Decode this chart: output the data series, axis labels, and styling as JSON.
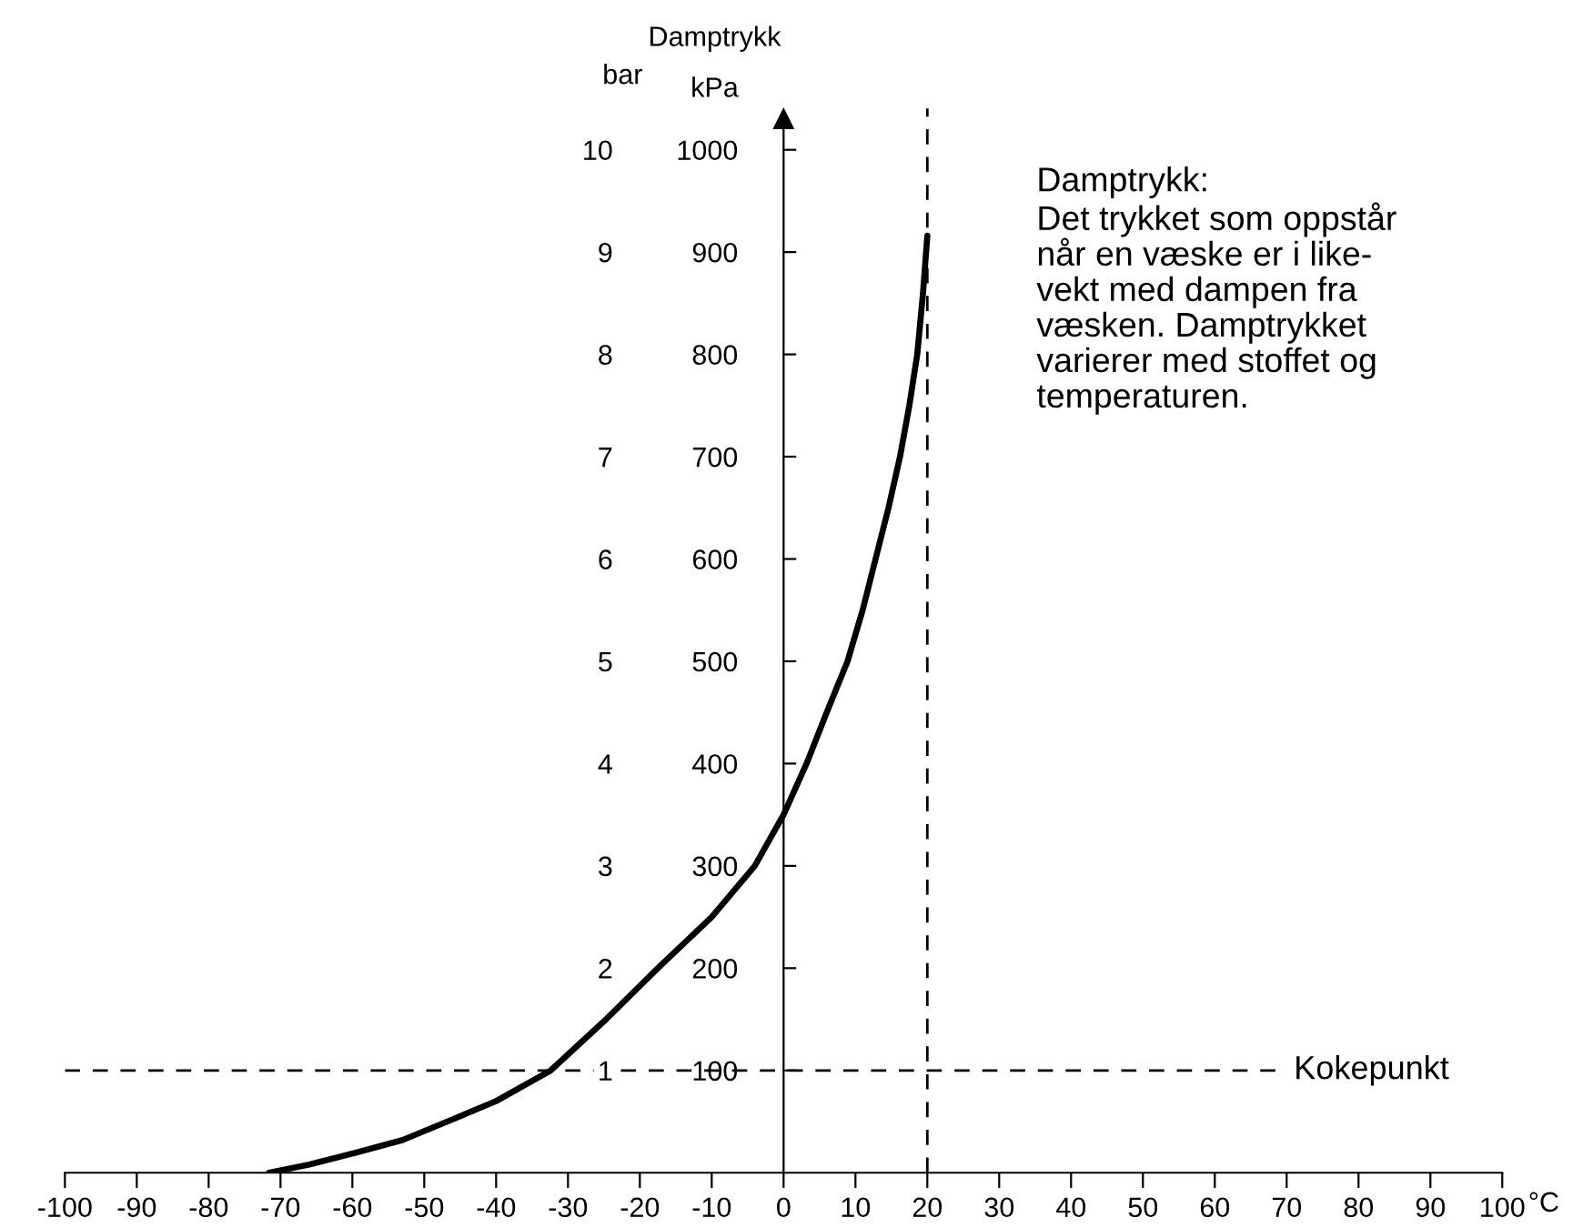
{
  "chart_data": {
    "type": "line",
    "title": "Damptrykk",
    "xlabel": "°C",
    "ylabel": "kPa",
    "y2label": "bar",
    "x": [
      -71.6,
      -66,
      -59.3,
      -53,
      -46.8,
      -40,
      -32.4,
      -25,
      -17.5,
      -10,
      -4,
      0,
      3.2,
      6,
      8.9,
      11,
      12.8,
      14.6,
      16.2,
      17.5,
      18.6,
      19.4,
      20
    ],
    "series": [
      {
        "color": "#000000",
        "values": [
          0,
          8,
          20,
          32,
          50,
          70,
          100,
          148,
          200,
          250,
          300,
          350,
          400,
          450,
          500,
          550,
          600,
          650,
          700,
          750,
          800,
          860,
          916
        ]
      }
    ],
    "xlim": [
      -100,
      100
    ],
    "ylim": [
      0,
      1030
    ],
    "y2lim": [
      0,
      10.3
    ],
    "xticks": [
      -100,
      -90,
      -80,
      -70,
      -60,
      -50,
      -40,
      -30,
      -20,
      -10,
      0,
      10,
      20,
      30,
      40,
      50,
      60,
      70,
      80,
      90,
      100
    ],
    "yticks": [
      100,
      200,
      300,
      400,
      500,
      600,
      700,
      800,
      900,
      1000
    ],
    "y2ticks": [
      1,
      2,
      3,
      4,
      5,
      6,
      7,
      8,
      9,
      10
    ],
    "ref_lines": [
      {
        "axis": "y",
        "value": 100,
        "label": "Kokepunkt",
        "line_style": "dashed"
      },
      {
        "axis": "x",
        "value": 20,
        "label": null,
        "line_style": "dashed"
      }
    ],
    "annotations": [
      "Damptrykk:\nDet trykket som oppstår\nnår en væske er i like-\nvekt med dampen fra\nvæsken. Damptrykket\nvarierer med stoffet og\ntemperaturen."
    ],
    "grid": false
  }
}
